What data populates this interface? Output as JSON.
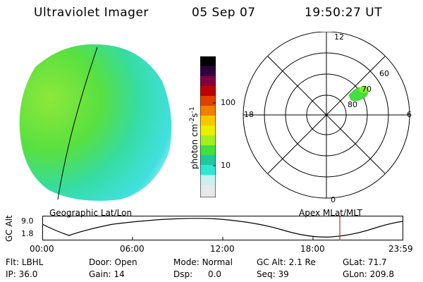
{
  "header": {
    "title": "Ultraviolet Imager",
    "date": "05 Sep 07",
    "time": "19:50:27 UT"
  },
  "colorbar": {
    "label": "photon cm",
    "label_sup1": "-2",
    "label_mid": "s",
    "label_sup2": "-1",
    "ticks": [
      "100",
      "10"
    ],
    "scale": "log",
    "colors": [
      "#e8e8e8",
      "#c8f0f0",
      "#30e8d0",
      "#20c8a0",
      "#40e040",
      "#a0f020",
      "#e8f000",
      "#f8c800",
      "#f08000",
      "#e04000",
      "#c00000",
      "#a00030",
      "#600060",
      "#300040",
      "#000000"
    ]
  },
  "polar_plot": {
    "hour_labels": [
      "12",
      "18",
      "6",
      "0"
    ],
    "lat_labels": [
      "60",
      "70",
      "80"
    ],
    "label": "Apex  MLat/MLT"
  },
  "earth_image": {
    "label": "Geographic Lat/Lon"
  },
  "altitude_panel": {
    "y_label": "GC Alt",
    "y_ticks": [
      "9.0",
      "1.8"
    ],
    "x_ticks": [
      "00:00",
      "06:00",
      "12:00",
      "18:00",
      "23:59"
    ],
    "marker_color": "#d02020"
  },
  "info": {
    "flt_label": "Flt:",
    "flt_value": "LBHL",
    "ip_label": "IP:",
    "ip_value": "36.0",
    "door_label": "Door:",
    "door_value": "Open",
    "gain_label": "Gain:",
    "gain_value": "14",
    "mode_label": "Mode:",
    "mode_value": "Normal",
    "dsp_label": "Dsp:",
    "dsp_value": "0.0",
    "gcalt_label": "GC Alt:",
    "gcalt_value": "2.1 Re",
    "seq_label": "Seq:",
    "seq_value": "39",
    "glat_label": "GLat:",
    "glat_value": "71.7",
    "glon_label": "GLon:",
    "glon_value": "209.8"
  }
}
